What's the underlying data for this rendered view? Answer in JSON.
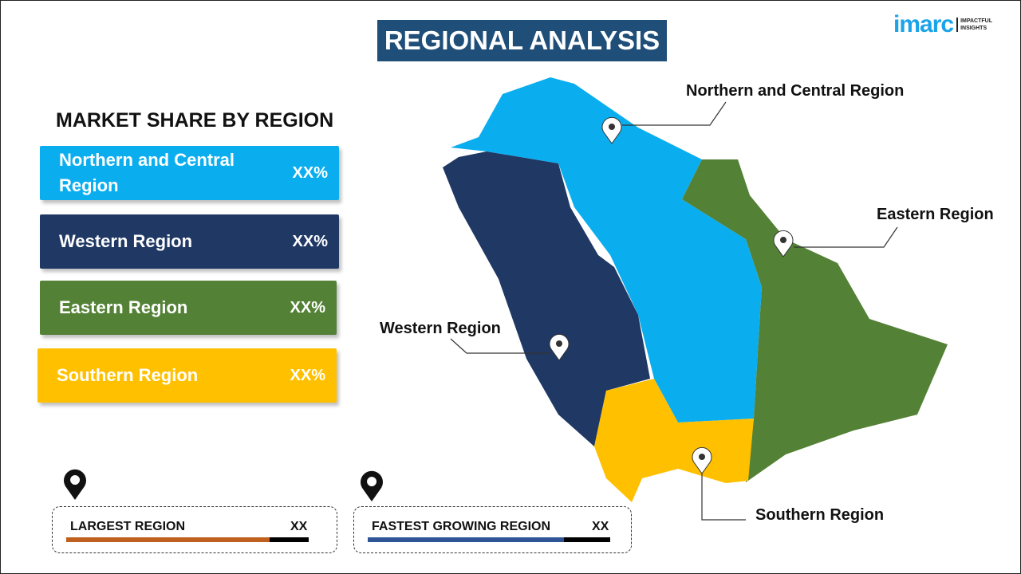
{
  "title": "REGIONAL ANALYSIS",
  "logo": {
    "brand": "imarc",
    "tagline_1": "IMPACTFUL",
    "tagline_2": "INSIGHTS"
  },
  "market_share": {
    "heading": "MARKET SHARE BY REGION",
    "items": [
      {
        "label": "Northern and Central Region",
        "value": "XX%",
        "color": "#0aaeef"
      },
      {
        "label": "Western Region",
        "value": "XX%",
        "color": "#1f3864"
      },
      {
        "label": "Eastern Region",
        "value": "XX%",
        "color": "#538135"
      },
      {
        "label": "Southern Region",
        "value": "XX%",
        "color": "#ffc000"
      }
    ]
  },
  "map_labels": {
    "north": "Northern and Central Region",
    "east": "Eastern Region",
    "west": "Western Region",
    "south": "Southern Region"
  },
  "largest": {
    "label": "LARGEST REGION",
    "value": "XX",
    "bar_color": "#c0601f",
    "fill_pct": 84
  },
  "fastest": {
    "label": "FASTEST  GROWING REGION",
    "value": "XX",
    "bar_color": "#2f5597",
    "fill_pct": 81
  }
}
